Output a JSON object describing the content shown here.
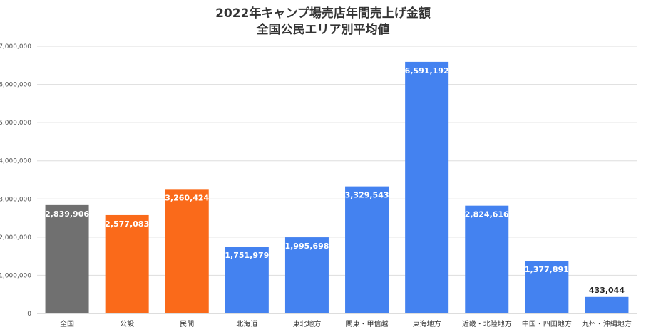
{
  "chart_data": {
    "type": "bar",
    "title": "2022年キャンプ場売店年間売上げ金額",
    "subtitle": "全国公民エリア別平均値",
    "categories": [
      "全国",
      "公設",
      "民間",
      "北海道",
      "東北地方",
      "関東・甲信越",
      "東海地方",
      "近畿・北陸地方",
      "中国・四国地方",
      "九州・沖縄地方"
    ],
    "values": [
      2839906,
      2577083,
      3260424,
      1751979,
      1995698,
      3329543,
      6591192,
      2824616,
      1377891,
      433044
    ],
    "value_labels": [
      "2,839,906",
      "2,577,083",
      "3,260,424",
      "1,751,979",
      "1,995,698",
      "3,329,543",
      "6,591,192",
      "2,824,616",
      "1,377,891",
      "433,044"
    ],
    "bar_colors": [
      "#707070",
      "#fa6a1a",
      "#fa6a1a",
      "#4482f0",
      "#4482f0",
      "#4482f0",
      "#4482f0",
      "#4482f0",
      "#4482f0",
      "#4482f0"
    ],
    "ylim": [
      0,
      7000000
    ],
    "yticks": [
      0,
      1000000,
      2000000,
      3000000,
      4000000,
      5000000,
      6000000,
      7000000
    ],
    "ytick_labels": [
      "0",
      "1,000,000",
      "2,000,000",
      "3,000,000",
      "4,000,000",
      "5,000,000",
      "6,000,000",
      "7,000,000"
    ],
    "xlabel": "",
    "ylabel": "",
    "grid": true,
    "legend": "none"
  }
}
